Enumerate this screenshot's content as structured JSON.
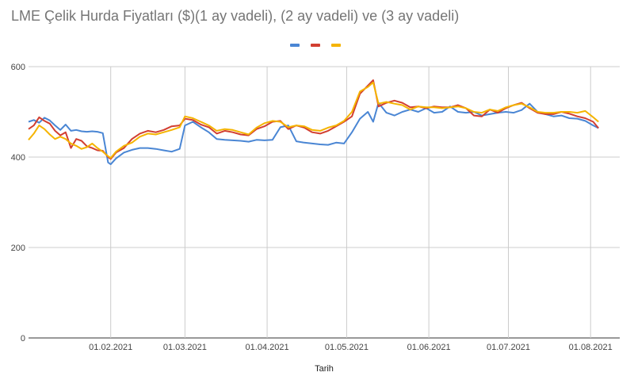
{
  "chart_data": {
    "type": "line",
    "title": "LME Çelik Hurda Fiyatları ($)(1 ay vadeli), (2 ay vadeli) ve (3 ay vadeli)",
    "xlabel": "Tarih",
    "ylabel": "",
    "ylim": [
      0,
      600
    ],
    "yticks": [
      "0",
      "200",
      "400",
      "600"
    ],
    "xticks": [
      {
        "date": "2021-02-01",
        "label": "01.02.2021"
      },
      {
        "date": "2021-03-01",
        "label": "01.03.2021"
      },
      {
        "date": "2021-04-01",
        "label": "01.04.2021"
      },
      {
        "date": "2021-05-01",
        "label": "01.05.2021"
      },
      {
        "date": "2021-06-01",
        "label": "01.06.2021"
      },
      {
        "date": "2021-07-01",
        "label": "01.07.2021"
      },
      {
        "date": "2021-08-01",
        "label": "01.08.2021"
      }
    ],
    "xlim": [
      "2021-01-01",
      "2021-08-12"
    ],
    "grid": true,
    "legend_position": "top",
    "colors": [
      "#4a86d4",
      "#d23f31",
      "#f5b400"
    ],
    "series": [
      {
        "x": [
          "2021-01-01",
          "2021-01-03",
          "2021-01-05",
          "2021-01-07",
          "2021-01-09",
          "2021-01-11",
          "2021-01-13",
          "2021-01-15",
          "2021-01-17",
          "2021-01-19",
          "2021-01-21",
          "2021-01-23",
          "2021-01-25",
          "2021-01-27",
          "2021-01-29",
          "2021-01-31",
          "2021-02-01",
          "2021-02-03",
          "2021-02-06",
          "2021-02-09",
          "2021-02-12",
          "2021-02-15",
          "2021-02-18",
          "2021-02-21",
          "2021-02-24",
          "2021-02-27",
          "2021-03-01",
          "2021-03-04",
          "2021-03-07",
          "2021-03-10",
          "2021-03-13",
          "2021-03-16",
          "2021-03-19",
          "2021-03-22",
          "2021-03-25",
          "2021-03-28",
          "2021-03-31",
          "2021-04-03",
          "2021-04-06",
          "2021-04-09",
          "2021-04-12",
          "2021-04-15",
          "2021-04-18",
          "2021-04-21",
          "2021-04-24",
          "2021-04-27",
          "2021-04-30",
          "2021-05-03",
          "2021-05-06",
          "2021-05-09",
          "2021-05-11",
          "2021-05-13",
          "2021-05-16",
          "2021-05-19",
          "2021-05-22",
          "2021-05-25",
          "2021-05-28",
          "2021-05-31",
          "2021-06-03",
          "2021-06-06",
          "2021-06-09",
          "2021-06-12",
          "2021-06-15",
          "2021-06-18",
          "2021-06-21",
          "2021-06-24",
          "2021-06-27",
          "2021-06-30",
          "2021-07-03",
          "2021-07-06",
          "2021-07-09",
          "2021-07-12",
          "2021-07-15",
          "2021-07-18",
          "2021-07-21",
          "2021-07-24",
          "2021-07-27",
          "2021-07-30",
          "2021-08-02",
          "2021-08-04"
        ],
        "values": [
          478,
          482,
          476,
          487,
          481,
          470,
          460,
          472,
          458,
          460,
          457,
          456,
          457,
          456,
          453,
          388,
          384,
          397,
          410,
          416,
          420,
          420,
          418,
          415,
          412,
          418,
          470,
          478,
          466,
          455,
          440,
          438,
          437,
          436,
          434,
          438,
          437,
          438,
          466,
          470,
          435,
          432,
          430,
          428,
          427,
          432,
          430,
          455,
          485,
          500,
          478,
          520,
          498,
          492,
          500,
          505,
          500,
          508,
          498,
          500,
          512,
          500,
          498,
          500,
          492,
          495,
          498,
          500,
          498,
          504,
          518,
          500,
          495,
          490,
          492,
          486,
          485,
          480,
          470,
          464
        ]
      },
      {
        "x": [
          "2021-01-01",
          "2021-01-03",
          "2021-01-05",
          "2021-01-07",
          "2021-01-09",
          "2021-01-11",
          "2021-01-13",
          "2021-01-15",
          "2021-01-17",
          "2021-01-19",
          "2021-01-21",
          "2021-01-23",
          "2021-01-25",
          "2021-01-27",
          "2021-01-29",
          "2021-01-31",
          "2021-02-01",
          "2021-02-03",
          "2021-02-06",
          "2021-02-09",
          "2021-02-12",
          "2021-02-15",
          "2021-02-18",
          "2021-02-21",
          "2021-02-24",
          "2021-02-27",
          "2021-03-01",
          "2021-03-04",
          "2021-03-07",
          "2021-03-10",
          "2021-03-13",
          "2021-03-16",
          "2021-03-19",
          "2021-03-22",
          "2021-03-25",
          "2021-03-28",
          "2021-03-31",
          "2021-04-03",
          "2021-04-06",
          "2021-04-09",
          "2021-04-12",
          "2021-04-15",
          "2021-04-18",
          "2021-04-21",
          "2021-04-24",
          "2021-04-27",
          "2021-04-30",
          "2021-05-03",
          "2021-05-06",
          "2021-05-09",
          "2021-05-11",
          "2021-05-13",
          "2021-05-16",
          "2021-05-19",
          "2021-05-22",
          "2021-05-25",
          "2021-05-28",
          "2021-05-31",
          "2021-06-03",
          "2021-06-06",
          "2021-06-09",
          "2021-06-12",
          "2021-06-15",
          "2021-06-18",
          "2021-06-21",
          "2021-06-24",
          "2021-06-27",
          "2021-06-30",
          "2021-07-03",
          "2021-07-06",
          "2021-07-09",
          "2021-07-12",
          "2021-07-15",
          "2021-07-18",
          "2021-07-21",
          "2021-07-24",
          "2021-07-27",
          "2021-07-30",
          "2021-08-02",
          "2021-08-04"
        ],
        "values": [
          462,
          470,
          488,
          480,
          474,
          458,
          448,
          455,
          420,
          440,
          436,
          424,
          420,
          415,
          414,
          400,
          396,
          410,
          420,
          440,
          452,
          458,
          455,
          460,
          468,
          470,
          485,
          482,
          472,
          466,
          452,
          458,
          455,
          450,
          448,
          462,
          468,
          478,
          480,
          462,
          470,
          465,
          455,
          452,
          458,
          468,
          478,
          490,
          540,
          558,
          570,
          512,
          520,
          525,
          520,
          510,
          512,
          508,
          512,
          510,
          510,
          515,
          508,
          492,
          490,
          505,
          498,
          508,
          515,
          520,
          508,
          498,
          495,
          495,
          500,
          496,
          490,
          486,
          478,
          464
        ]
      },
      {
        "x": [
          "2021-01-01",
          "2021-01-03",
          "2021-01-05",
          "2021-01-07",
          "2021-01-09",
          "2021-01-11",
          "2021-01-13",
          "2021-01-15",
          "2021-01-17",
          "2021-01-19",
          "2021-01-21",
          "2021-01-23",
          "2021-01-25",
          "2021-01-27",
          "2021-01-29",
          "2021-01-31",
          "2021-02-01",
          "2021-02-03",
          "2021-02-06",
          "2021-02-09",
          "2021-02-12",
          "2021-02-15",
          "2021-02-18",
          "2021-02-21",
          "2021-02-24",
          "2021-02-27",
          "2021-03-01",
          "2021-03-04",
          "2021-03-07",
          "2021-03-10",
          "2021-03-13",
          "2021-03-16",
          "2021-03-19",
          "2021-03-22",
          "2021-03-25",
          "2021-03-28",
          "2021-03-31",
          "2021-04-03",
          "2021-04-06",
          "2021-04-09",
          "2021-04-12",
          "2021-04-15",
          "2021-04-18",
          "2021-04-21",
          "2021-04-24",
          "2021-04-27",
          "2021-04-30",
          "2021-05-03",
          "2021-05-06",
          "2021-05-09",
          "2021-05-11",
          "2021-05-13",
          "2021-05-16",
          "2021-05-19",
          "2021-05-22",
          "2021-05-25",
          "2021-05-28",
          "2021-05-31",
          "2021-06-03",
          "2021-06-06",
          "2021-06-09",
          "2021-06-12",
          "2021-06-15",
          "2021-06-18",
          "2021-06-21",
          "2021-06-24",
          "2021-06-27",
          "2021-06-30",
          "2021-07-03",
          "2021-07-06",
          "2021-07-09",
          "2021-07-12",
          "2021-07-15",
          "2021-07-18",
          "2021-07-21",
          "2021-07-24",
          "2021-07-27",
          "2021-07-30",
          "2021-08-02",
          "2021-08-04"
        ],
        "values": [
          438,
          452,
          470,
          462,
          450,
          440,
          445,
          440,
          430,
          425,
          418,
          422,
          430,
          420,
          412,
          402,
          398,
          412,
          425,
          432,
          445,
          452,
          450,
          455,
          460,
          466,
          490,
          486,
          478,
          470,
          458,
          462,
          460,
          455,
          450,
          465,
          475,
          480,
          478,
          466,
          470,
          468,
          460,
          458,
          465,
          470,
          480,
          500,
          545,
          555,
          565,
          518,
          522,
          518,
          515,
          505,
          512,
          510,
          510,
          508,
          510,
          512,
          508,
          500,
          498,
          505,
          502,
          510,
          515,
          518,
          510,
          500,
          498,
          498,
          500,
          500,
          498,
          502,
          488,
          478
        ]
      }
    ]
  }
}
